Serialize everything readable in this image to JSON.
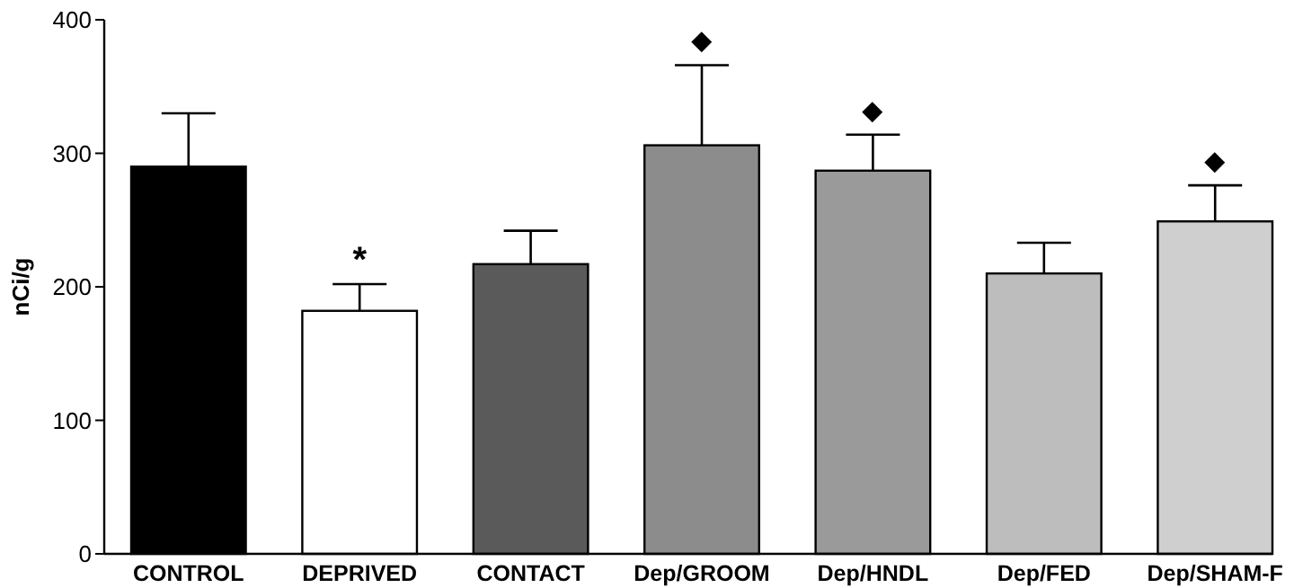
{
  "chart_data": {
    "type": "bar",
    "ylabel": "nCi/g",
    "categories": [
      "CONTROL",
      "DEPRIVED",
      "CONTACT",
      "Dep/GROOM",
      "Dep/HNDL",
      "Dep/FED",
      "Dep/SHAM-F"
    ],
    "values": [
      290,
      182,
      217,
      306,
      287,
      210,
      249
    ],
    "errors": [
      40,
      20,
      25,
      60,
      27,
      23,
      27
    ],
    "colors": [
      "#000000",
      "#ffffff",
      "#5a5a5a",
      "#8c8c8c",
      "#9a9a9a",
      "#bdbdbd",
      "#cfcfcf"
    ],
    "ylim": [
      0,
      400
    ],
    "yticks": [
      0,
      100,
      200,
      300,
      400
    ],
    "annotations": [
      {
        "text": "*",
        "x": "DEPRIVED",
        "y": 202
      },
      {
        "text": "◆",
        "x": "Dep/GROOM",
        "y": 366
      },
      {
        "text": "◆",
        "x": "Dep/HNDL",
        "y": 314
      },
      {
        "text": "◆",
        "x": "Dep/SHAM-F",
        "y": 276
      }
    ]
  }
}
